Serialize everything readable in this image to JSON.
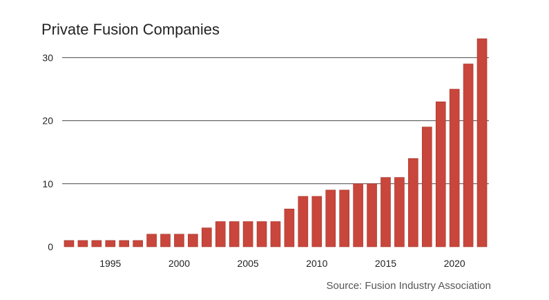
{
  "chart_data": {
    "type": "bar",
    "title": "Private Fusion Companies",
    "source": "Source: Fusion Industry Association",
    "xlabel": "",
    "ylabel": "",
    "x": [
      1992,
      1993,
      1994,
      1995,
      1996,
      1997,
      1998,
      1999,
      2000,
      2001,
      2002,
      2003,
      2004,
      2005,
      2006,
      2007,
      2008,
      2009,
      2010,
      2011,
      2012,
      2013,
      2014,
      2015,
      2016,
      2017,
      2018,
      2019,
      2020,
      2021,
      2022
    ],
    "values": [
      1,
      1,
      1,
      1,
      1,
      1,
      2,
      2,
      2,
      2,
      3,
      4,
      4,
      4,
      4,
      4,
      6,
      8,
      8,
      9,
      9,
      10,
      10,
      11,
      11,
      14,
      19,
      23,
      25,
      29,
      33
    ],
    "x_ticks": [
      1995,
      2000,
      2005,
      2010,
      2015,
      2020
    ],
    "y_ticks": [
      0,
      10,
      20,
      30
    ],
    "ylim": [
      0,
      33
    ],
    "grid": "horizontal",
    "bar_color": "#c8463b",
    "bar_edge_color": "#a3322a",
    "grid_color": "#444444"
  }
}
